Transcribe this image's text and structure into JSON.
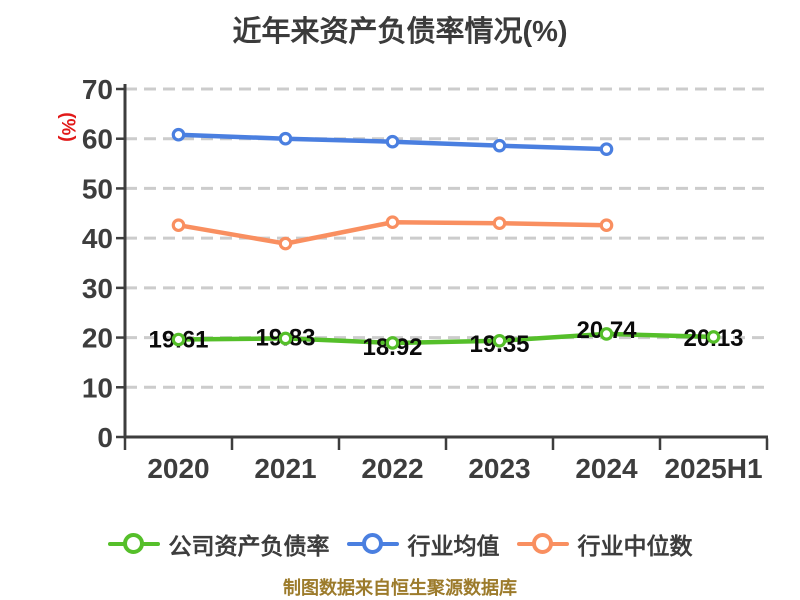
{
  "chart_data": {
    "type": "line",
    "title": "近年来资产负债率情况(%)",
    "ylabel": "(%)",
    "xlabel": "",
    "footer": "制图数据来自恒生聚源数据库",
    "categories": [
      "2020",
      "2021",
      "2022",
      "2023",
      "2024",
      "2025H1"
    ],
    "ylim": [
      0,
      70
    ],
    "ytick_interval": 10,
    "ytick_labels": [
      "0",
      "10",
      "20",
      "30",
      "40",
      "50",
      "60",
      "70"
    ],
    "grid": "horizontal-dashed",
    "legend_position": "bottom",
    "series": [
      {
        "name": "公司资产负债率",
        "color": "#55bf2a",
        "values": [
          19.61,
          19.83,
          18.92,
          19.35,
          20.74,
          20.13
        ],
        "data_labels": [
          "19.61",
          "19.83",
          "18.92",
          "19.35",
          "20.74",
          "20.13"
        ],
        "label_dy": [
          0,
          -1,
          4,
          3,
          -4,
          1
        ]
      },
      {
        "name": "行业均值",
        "color": "#4a7fe0",
        "values": [
          60.8,
          60.0,
          59.4,
          58.6,
          57.9
        ]
      },
      {
        "name": "行业中位数",
        "color": "#f98f60",
        "values": [
          42.6,
          38.9,
          43.2,
          43.0,
          42.6
        ]
      }
    ],
    "colors": {
      "title": "#3b3b3b",
      "axis": "#3d3d3d",
      "grid": "#cccccc",
      "tick_label": "#3d3d3d",
      "data_label": "#0a0a0a",
      "ylabel": "#e11919",
      "footer": "#9c7b2b",
      "marker_fill": "#ffffff"
    }
  }
}
